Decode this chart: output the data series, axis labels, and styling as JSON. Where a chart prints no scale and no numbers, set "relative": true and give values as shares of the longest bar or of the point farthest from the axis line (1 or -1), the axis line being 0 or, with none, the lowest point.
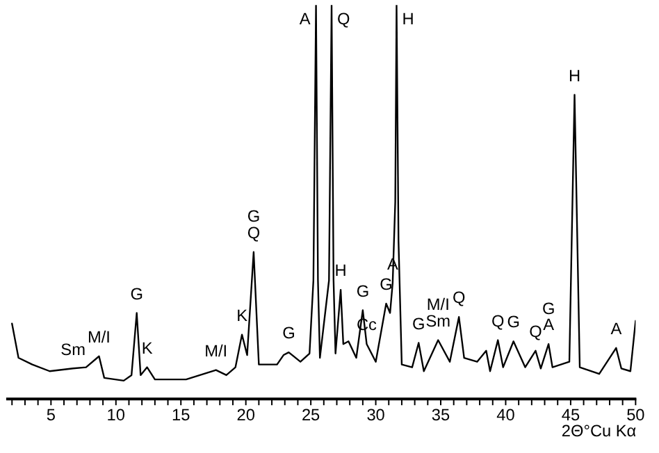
{
  "chart_data": {
    "type": "line",
    "relative": true,
    "xlabel": "2Θ°Cu Kα",
    "x": [
      2.0,
      2.5,
      3.56,
      4.9,
      6.7,
      7.7,
      8.7,
      9.1,
      10.6,
      11.2,
      11.6,
      11.9,
      12.4,
      13.0,
      15.4,
      17.7,
      18.5,
      19.2,
      19.7,
      20.1,
      20.6,
      21.0,
      22.4,
      22.9,
      23.3,
      24.2,
      24.9,
      25.2,
      25.4,
      25.55,
      25.7,
      26.4,
      26.6,
      26.75,
      26.9,
      27.3,
      27.5,
      27.9,
      28.5,
      29.0,
      29.3,
      30.0,
      30.8,
      31.1,
      31.3,
      31.5,
      31.6,
      31.75,
      32.0,
      32.8,
      33.3,
      33.7,
      34.8,
      35.7,
      36.4,
      36.8,
      37.8,
      38.5,
      38.8,
      39.4,
      39.8,
      40.6,
      41.5,
      42.3,
      42.7,
      43.3,
      43.6,
      44.9,
      45.3,
      45.7,
      47.2,
      48.5,
      48.9,
      49.6,
      50.0
    ],
    "series": [
      {
        "color": "#000000",
        "values": [
          0.19,
          0.103,
          0.086,
          0.069,
          0.076,
          0.079,
          0.107,
          0.052,
          0.045,
          0.059,
          0.217,
          0.059,
          0.079,
          0.048,
          0.048,
          0.072,
          0.059,
          0.079,
          0.162,
          0.11,
          0.372,
          0.086,
          0.086,
          0.11,
          0.117,
          0.093,
          0.114,
          0.3,
          1,
          0.3,
          0.103,
          0.3,
          1,
          0.3,
          0.114,
          0.276,
          0.138,
          0.145,
          0.103,
          0.224,
          0.138,
          0.093,
          0.241,
          0.217,
          0.293,
          0.5,
          1,
          0.4,
          0.086,
          0.079,
          0.141,
          0.069,
          0.148,
          0.093,
          0.207,
          0.103,
          0.093,
          0.121,
          0.069,
          0.148,
          0.079,
          0.145,
          0.079,
          0.121,
          0.076,
          0.138,
          0.079,
          0.093,
          0.772,
          0.079,
          0.062,
          0.128,
          0.076,
          0.069,
          0.197
        ]
      }
    ],
    "xlim": [
      1.5,
      50
    ],
    "xticks": [
      {
        "value": 2,
        "label": null
      },
      {
        "value": 3,
        "label": null
      },
      {
        "value": 4,
        "label": null
      },
      5,
      {
        "value": 6,
        "label": null
      },
      {
        "value": 7,
        "label": null
      },
      {
        "value": 8,
        "label": null
      },
      {
        "value": 9,
        "label": null
      },
      10,
      {
        "value": 11,
        "label": null
      },
      {
        "value": 12,
        "label": null
      },
      {
        "value": 13,
        "label": null
      },
      {
        "value": 14,
        "label": null
      },
      15,
      {
        "value": 16,
        "label": null
      },
      {
        "value": 17,
        "label": null
      },
      {
        "value": 18,
        "label": null
      },
      {
        "value": 19,
        "label": null
      },
      20,
      {
        "value": 21,
        "label": null
      },
      {
        "value": 22,
        "label": null
      },
      {
        "value": 23,
        "label": null
      },
      {
        "value": 24,
        "label": null
      },
      25,
      {
        "value": 26,
        "label": null
      },
      {
        "value": 27,
        "label": null
      },
      {
        "value": 28,
        "label": null
      },
      {
        "value": 29,
        "label": null
      },
      30,
      {
        "value": 31,
        "label": null
      },
      {
        "value": 32,
        "label": null
      },
      {
        "value": 33,
        "label": null
      },
      {
        "value": 34,
        "label": null
      },
      35,
      {
        "value": 36,
        "label": null
      },
      {
        "value": 37,
        "label": null
      },
      {
        "value": 38,
        "label": null
      },
      {
        "value": 39,
        "label": null
      },
      40,
      {
        "value": 41,
        "label": null
      },
      {
        "value": 42,
        "label": null
      },
      {
        "value": 43,
        "label": null
      },
      {
        "value": 44,
        "label": null
      },
      45,
      {
        "value": 46,
        "label": null
      },
      {
        "value": 47,
        "label": null
      },
      {
        "value": 48,
        "label": null
      },
      {
        "value": 49,
        "label": null
      },
      50
    ],
    "grid": false,
    "annotations": [
      {
        "text": "Sm",
        "x": 6.7,
        "y": 0.076
      },
      {
        "text": "M/I",
        "x": 8.7,
        "y": 0.107
      },
      {
        "text": "G",
        "x": 11.6,
        "y": 0.217
      },
      {
        "text": "K",
        "x": 12.4,
        "y": 0.079
      },
      {
        "text": "M/I",
        "x": 17.7,
        "y": 0.072
      },
      {
        "text": "K",
        "x": 19.7,
        "y": 0.162
      },
      {
        "text": "Q",
        "x": 20.6,
        "y": 0.372
      },
      {
        "text": "G",
        "x": 20.6,
        "y": 0.372
      },
      {
        "text": "G",
        "x": 23.3,
        "y": 0.117
      },
      {
        "text": "A",
        "x": 25.4,
        "y": 1
      },
      {
        "text": "Q",
        "x": 26.6,
        "y": 1
      },
      {
        "text": "H",
        "x": 27.3,
        "y": 0.276
      },
      {
        "text": "G",
        "x": 29.0,
        "y": 0.224
      },
      {
        "text": "Cc",
        "x": 29.3,
        "y": 0.138
      },
      {
        "text": "G",
        "x": 30.8,
        "y": 0.241
      },
      {
        "text": "A",
        "x": 31.3,
        "y": 0.293
      },
      {
        "text": "H",
        "x": 31.6,
        "y": 1
      },
      {
        "text": "G",
        "x": 33.3,
        "y": 0.141
      },
      {
        "text": "Sm",
        "x": 34.8,
        "y": 0.148
      },
      {
        "text": "M/I",
        "x": 34.8,
        "y": 0.148
      },
      {
        "text": "Q",
        "x": 36.4,
        "y": 0.207
      },
      {
        "text": "Q",
        "x": 39.4,
        "y": 0.148
      },
      {
        "text": "G",
        "x": 40.6,
        "y": 0.145
      },
      {
        "text": "Q",
        "x": 42.3,
        "y": 0.121
      },
      {
        "text": "A",
        "x": 43.3,
        "y": 0.138
      },
      {
        "text": "G",
        "x": 43.3,
        "y": 0.138
      },
      {
        "text": "H",
        "x": 45.3,
        "y": 0.772
      },
      {
        "text": "A",
        "x": 48.5,
        "y": 0.128
      }
    ]
  }
}
